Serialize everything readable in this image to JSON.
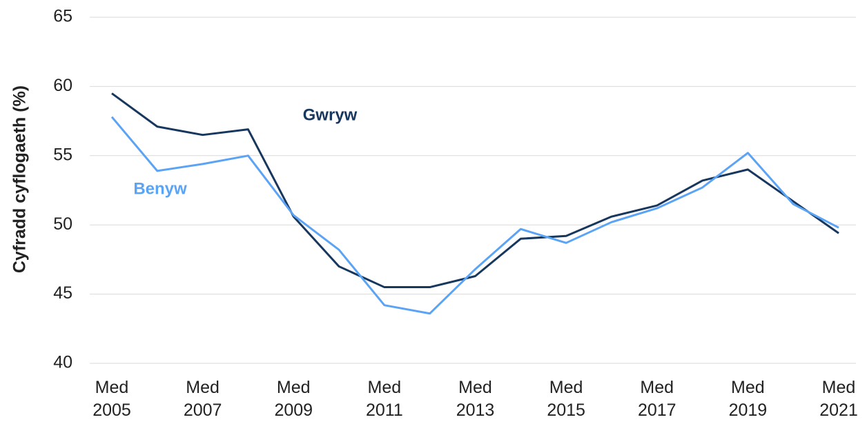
{
  "chart_data": {
    "type": "line",
    "y_label": "Cyfradd cyflogaeth (%)",
    "categories": [
      "Med 2005",
      null,
      "Med 2007",
      null,
      "Med 2009",
      null,
      "Med 2011",
      null,
      "Med 2013",
      null,
      "Med 2015",
      null,
      "Med 2017",
      null,
      "Med 2019",
      null,
      "Med 2021"
    ],
    "series": [
      {
        "name": "Gwryw",
        "color": "#17375e",
        "values": [
          59.5,
          57.1,
          56.5,
          56.9,
          50.6,
          47.0,
          45.5,
          45.5,
          46.3,
          49.0,
          49.2,
          50.6,
          51.4,
          53.2,
          54.0,
          51.7,
          49.4
        ]
      },
      {
        "name": "Benyw",
        "color": "#5ba3f5",
        "values": [
          57.8,
          53.9,
          54.4,
          55.0,
          50.7,
          48.2,
          44.2,
          43.6,
          46.8,
          49.7,
          48.7,
          50.2,
          51.2,
          52.7,
          55.2,
          51.5,
          49.8
        ]
      }
    ],
    "ylim": [
      40,
      65
    ],
    "yticks": [
      40,
      45,
      50,
      55,
      60,
      65
    ],
    "grid": true
  }
}
